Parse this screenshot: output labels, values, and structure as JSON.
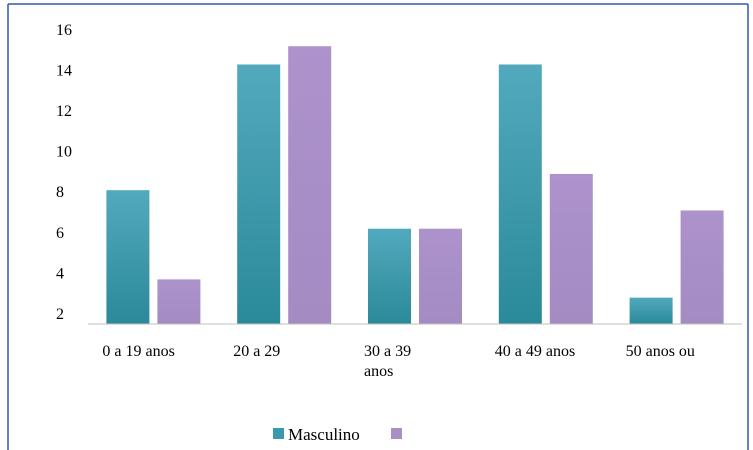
{
  "chart_data": {
    "type": "bar",
    "categories": [
      [
        "0 a 19 anos"
      ],
      [
        "20 a 29"
      ],
      [
        "30 a 39",
        "anos"
      ],
      [
        "40 a 49 anos"
      ],
      [
        "50 anos ou"
      ]
    ],
    "series": [
      {
        "name": "Masculino",
        "values": [
          8.1,
          14.3,
          6.2,
          14.3,
          2.8
        ],
        "color": "#3a9aac"
      },
      {
        "name": "",
        "values": [
          3.7,
          15.2,
          6.2,
          8.9,
          7.1
        ],
        "color": "#a98fc6"
      }
    ],
    "yticks": [
      2,
      4,
      6,
      8,
      10,
      12,
      14,
      16
    ],
    "ylim": [
      1.5,
      16
    ],
    "grid": false,
    "legend": "bottom",
    "colors": {
      "frame": "#2e5aa8",
      "axis": "#bfbfbf"
    }
  }
}
